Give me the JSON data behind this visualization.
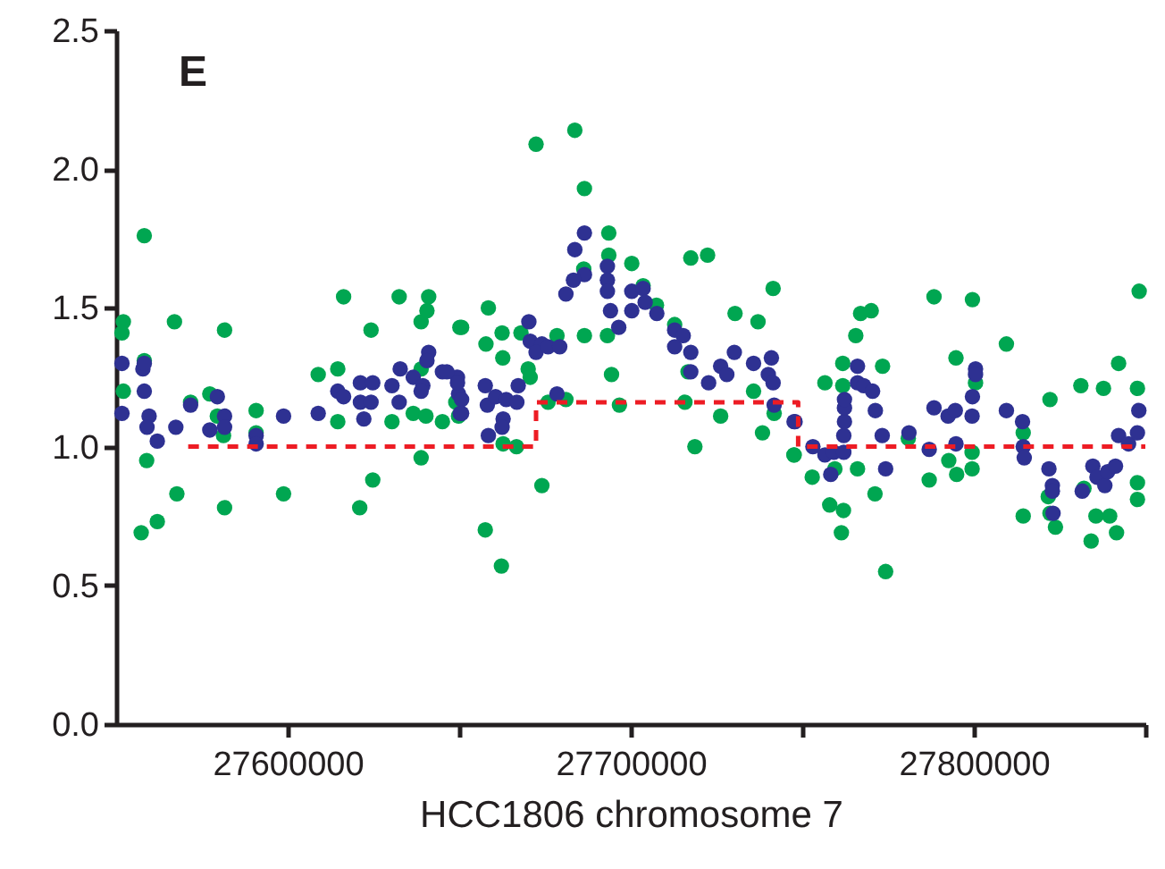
{
  "chart_data": {
    "type": "scatter",
    "xlabel": "HCC1806 chromosome 7",
    "annotations": [
      "E"
    ],
    "xlim": [
      27550000,
      27850000
    ],
    "ylim": [
      0,
      2.5
    ],
    "xticks": [
      27600000,
      {
        "value": 27650000,
        "label": null
      },
      27700000,
      {
        "value": 27750000,
        "label": null
      },
      27800000,
      {
        "value": 27850000,
        "label": null
      }
    ],
    "yticks": [
      {
        "value": 0,
        "label": "0.0"
      },
      {
        "value": 0.5,
        "label": "0.5"
      },
      {
        "value": 1,
        "label": "1.0"
      },
      {
        "value": 1.5,
        "label": "1.5"
      },
      {
        "value": 2,
        "label": "2.0"
      },
      {
        "value": 2.5,
        "label": "2.5"
      }
    ],
    "grid": false,
    "series": [
      {
        "marker": "circle",
        "color": "#00a651",
        "x": [
          27558200,
          27552100,
          27551700,
          27552100,
          27558200,
          27558900,
          27557300,
          27562000,
          27567000,
          27567700,
          27571700,
          27577300,
          27579500,
          27581300,
          27581600,
          27581600,
          27590800,
          27590800,
          27598800,
          27608900,
          27614600,
          27614600,
          27616300,
          27621000,
          27624300,
          27624800,
          27630400,
          27632500,
          27636600,
          27638900,
          27638900,
          27640600,
          27641100,
          27638900,
          27640300,
          27645100,
          27650200,
          27649000,
          27672400,
          27683700,
          27686500,
          27693600,
          27693600,
          27700300,
          27703600,
          27707500,
          27686300,
          27717500,
          27722400,
          27741500,
          27730400,
          27737100,
          27712800,
          27658500,
          27650700,
          27662500,
          27657800,
          27662700,
          27668000,
          27678500,
          27686500,
          27693200,
          27670100,
          27670700,
          27694400,
          27716700,
          27675900,
          27681100,
          27696700,
          27715800,
          27735800,
          27741800,
          27726200,
          27738400,
          27718700,
          27662800,
          27666700,
          27674100,
          27657600,
          27662300,
          27747600,
          27649800,
          27848200,
          27788400,
          27799600,
          27767000,
          27770100,
          27765600,
          27809500,
          27794800,
          27842200,
          27761800,
          27773400,
          27761800,
          27756600,
          27800500,
          27831200,
          27837800,
          27822200,
          27847700,
          27780900,
          27814400,
          27747600,
          27759500,
          27766100,
          27752900,
          27799500,
          27799500,
          27792700,
          27795000,
          27787000,
          27771200,
          27758000,
          27762000,
          27761400,
          27774300,
          27821700,
          27822200,
          27823800,
          27814400,
          27835600,
          27839600,
          27834200,
          27841600,
          27847700,
          27847700,
          27832100
        ],
        "values": [
          1.76,
          1.45,
          1.41,
          1.2,
          1.31,
          0.95,
          0.69,
          0.73,
          1.45,
          0.83,
          1.16,
          1.19,
          1.11,
          1.04,
          1.42,
          0.78,
          1.13,
          1.05,
          0.83,
          1.26,
          1.28,
          1.09,
          1.54,
          0.78,
          1.42,
          0.88,
          1.09,
          1.54,
          1.12,
          0.96,
          1.45,
          1.49,
          1.54,
          1.28,
          1.11,
          1.09,
          1.43,
          1.16,
          2.09,
          2.14,
          1.93,
          1.77,
          1.69,
          1.66,
          1.58,
          1.51,
          1.64,
          1.68,
          1.69,
          1.57,
          1.48,
          1.45,
          1.44,
          1.5,
          1.43,
          1.41,
          1.37,
          1.32,
          1.41,
          1.4,
          1.4,
          1.4,
          1.28,
          1.25,
          1.26,
          1.27,
          1.16,
          1.17,
          1.15,
          1.16,
          1.2,
          1.12,
          1.11,
          1.05,
          1.0,
          1.01,
          1.0,
          0.86,
          0.7,
          0.57,
          0.97,
          1.11,
          1.56,
          1.54,
          1.53,
          1.48,
          1.49,
          1.4,
          1.37,
          1.32,
          1.3,
          1.3,
          1.29,
          1.22,
          1.23,
          1.23,
          1.22,
          1.21,
          1.17,
          1.21,
          1.03,
          1.05,
          0.97,
          0.92,
          0.92,
          0.89,
          0.98,
          0.92,
          0.95,
          0.9,
          0.88,
          0.83,
          0.79,
          0.77,
          0.69,
          0.55,
          0.82,
          0.76,
          0.71,
          0.75,
          0.75,
          0.75,
          0.66,
          0.69,
          0.87,
          0.81,
          0.85
        ]
      },
      {
        "marker": "circle",
        "color": "#2e3192",
        "x": [
          27551700,
          27551700,
          27557800,
          27558200,
          27558200,
          27559600,
          27559000,
          27562000,
          27567400,
          27571700,
          27577300,
          27579500,
          27581600,
          27581600,
          27590800,
          27590800,
          27598800,
          27608900,
          27614600,
          27616300,
          27621200,
          27624800,
          27621200,
          27624300,
          27622200,
          27630400,
          27632800,
          27632500,
          27636600,
          27639400,
          27638900,
          27641100,
          27640600,
          27645100,
          27649500,
          27649800,
          27650300,
          27686500,
          27683700,
          27686500,
          27683300,
          27681100,
          27693200,
          27693200,
          27693200,
          27694100,
          27696500,
          27700300,
          27703600,
          27704200,
          27700300,
          27707600,
          27670300,
          27670700,
          27674100,
          27672400,
          27675900,
          27679300,
          27712800,
          27715300,
          27712800,
          27717500,
          27717500,
          27730200,
          27726200,
          27728000,
          27722700,
          27735800,
          27741000,
          27740100,
          27741500,
          27741800,
          27747900,
          27646400,
          27649500,
          27650700,
          27650700,
          27657600,
          27658200,
          27660600,
          27663700,
          27666800,
          27662800,
          27662500,
          27658500,
          27667200,
          27678500,
          27747600,
          27753100,
          27756600,
          27758300,
          27759200,
          27762100,
          27762100,
          27762300,
          27762300,
          27762300,
          27766100,
          27766100,
          27767900,
          27770500,
          27771300,
          27773300,
          27774300,
          27781100,
          27787000,
          27788400,
          27792500,
          27794600,
          27794800,
          27799500,
          27799600,
          27800500,
          27800500,
          27809500,
          27814200,
          27814400,
          27814700,
          27821900,
          27822900,
          27822900,
          27823100,
          27831600,
          27834700,
          27835900,
          27838200,
          27839000,
          27841300,
          27842200,
          27845100,
          27847700,
          27848100
        ],
        "values": [
          1.3,
          1.12,
          1.28,
          1.3,
          1.2,
          1.11,
          1.07,
          1.02,
          1.07,
          1.15,
          1.06,
          1.18,
          1.11,
          1.07,
          1.04,
          1.01,
          1.11,
          1.12,
          1.2,
          1.18,
          1.23,
          1.23,
          1.16,
          1.16,
          1.1,
          1.22,
          1.28,
          1.16,
          1.25,
          1.22,
          1.2,
          1.34,
          1.31,
          1.27,
          1.25,
          1.19,
          1.12,
          1.77,
          1.71,
          1.62,
          1.6,
          1.55,
          1.65,
          1.6,
          1.56,
          1.49,
          1.43,
          1.56,
          1.57,
          1.52,
          1.49,
          1.48,
          1.45,
          1.38,
          1.37,
          1.34,
          1.36,
          1.36,
          1.42,
          1.4,
          1.36,
          1.34,
          1.27,
          1.34,
          1.29,
          1.26,
          1.23,
          1.3,
          1.32,
          1.26,
          1.23,
          1.15,
          1.09,
          1.27,
          1.23,
          1.17,
          1.12,
          1.22,
          1.15,
          1.18,
          1.17,
          1.16,
          1.1,
          1.07,
          1.04,
          1.22,
          1.19,
          1.09,
          1.0,
          0.97,
          0.9,
          0.98,
          0.98,
          1.04,
          1.09,
          1.14,
          1.17,
          1.29,
          1.23,
          1.22,
          1.2,
          1.13,
          1.04,
          0.92,
          1.05,
          0.99,
          1.14,
          1.11,
          1.13,
          1.01,
          1.11,
          1.18,
          1.28,
          1.26,
          1.13,
          1.09,
          1.0,
          0.96,
          0.92,
          0.86,
          0.84,
          0.76,
          0.84,
          0.93,
          0.89,
          0.86,
          0.91,
          0.93,
          1.04,
          1.01,
          1.05,
          1.13
        ]
      },
      {
        "type": "step",
        "color": "#ed1c24",
        "line_style": "dashed",
        "x": [
          27571000,
          27672400,
          27748800,
          27850000
        ],
        "values": [
          1.0,
          1.16,
          1.0,
          1.0
        ]
      }
    ]
  }
}
